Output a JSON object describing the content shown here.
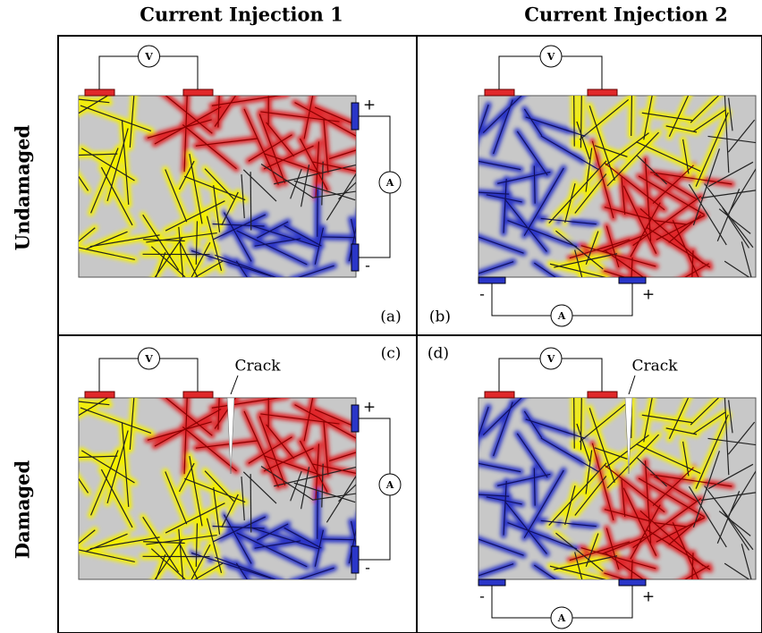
{
  "columns": [
    "Current Injection 1",
    "Current Injection 2"
  ],
  "rows": [
    "Undamaged",
    "Damaged"
  ],
  "panels": [
    {
      "label": "(a)",
      "voltmeter": "V",
      "ammeter": "A",
      "plus": "+",
      "minus": "-"
    },
    {
      "label": "(b)",
      "voltmeter": "V",
      "ammeter": "A",
      "plus": "+",
      "minus": "-"
    },
    {
      "label": "(c)",
      "voltmeter": "V",
      "ammeter": "A",
      "plus": "+",
      "minus": "-",
      "crack": "Crack"
    },
    {
      "label": "(d)",
      "voltmeter": "V",
      "ammeter": "A",
      "plus": "+",
      "minus": "-",
      "crack": "Crack"
    }
  ]
}
